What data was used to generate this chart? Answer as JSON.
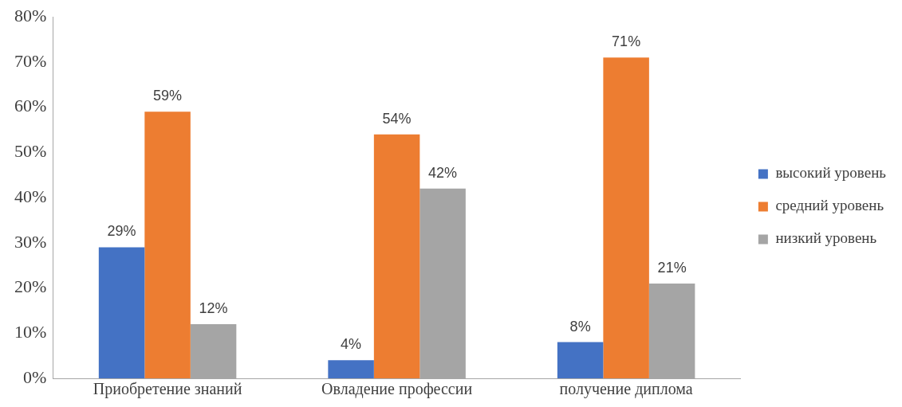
{
  "chart_data": {
    "type": "bar",
    "categories": [
      "Приобретение знаний",
      "Овладение профессии",
      "получение диплома"
    ],
    "series": [
      {
        "name": "высокий уровень",
        "color": "#4472c4",
        "values": [
          29,
          4,
          8
        ],
        "value_labels": [
          "29%",
          "4%",
          "8%"
        ]
      },
      {
        "name": "средний уровень",
        "color": "#ed7d31",
        "values": [
          59,
          54,
          71
        ],
        "value_labels": [
          "59%",
          "54%",
          "71%"
        ]
      },
      {
        "name": "низкий уровень",
        "color": "#a5a5a5",
        "values": [
          12,
          42,
          21
        ],
        "value_labels": [
          "12%",
          "42%",
          "21%"
        ]
      }
    ],
    "ylim": [
      0,
      80
    ],
    "yticks": [
      {
        "value": 0,
        "label": "0%"
      },
      {
        "value": 10,
        "label": "10%"
      },
      {
        "value": 20,
        "label": "20%"
      },
      {
        "value": 30,
        "label": "30%"
      },
      {
        "value": 40,
        "label": "40%"
      },
      {
        "value": 50,
        "label": "50%"
      },
      {
        "value": 60,
        "label": "60%"
      },
      {
        "value": 70,
        "label": "70%"
      },
      {
        "value": 80,
        "label": "80%"
      }
    ],
    "grid": false,
    "legend": "right"
  }
}
